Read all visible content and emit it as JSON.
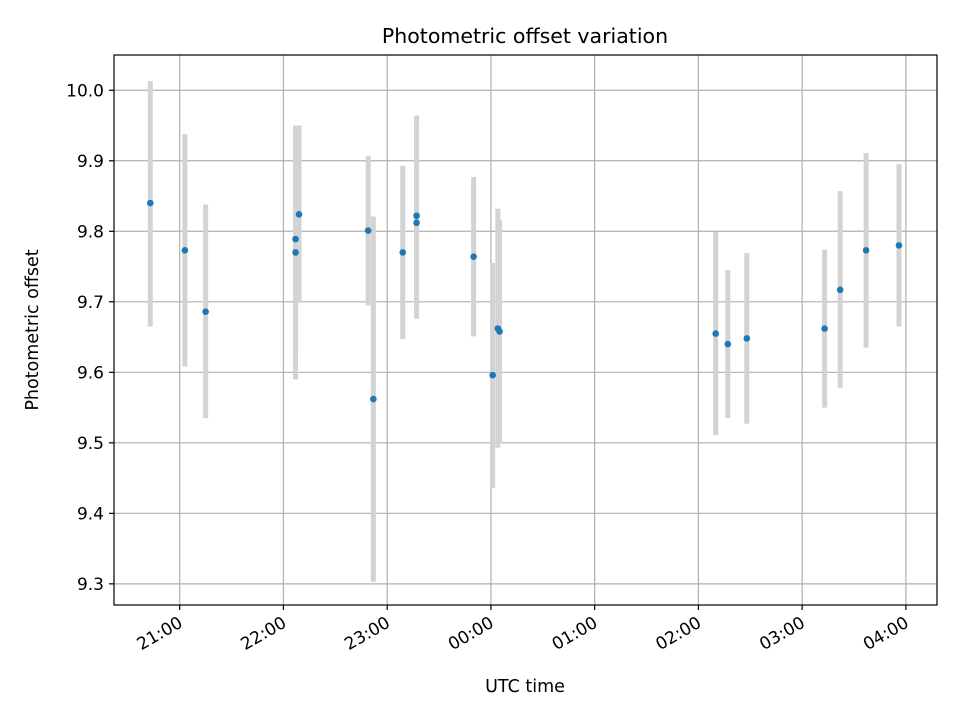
{
  "chart_data": {
    "type": "scatter",
    "title": "Photometric offset variation",
    "xlabel": "UTC time",
    "ylabel": "Photometric offset",
    "xlim": [
      "2023-01-01T20:22",
      "2023-01-02T04:18"
    ],
    "ylim": [
      9.27,
      10.05
    ],
    "grid": true,
    "x_ticks": [
      {
        "t": "2023-01-01T21:00",
        "label": "21:00"
      },
      {
        "t": "2023-01-01T22:00",
        "label": "22:00"
      },
      {
        "t": "2023-01-01T23:00",
        "label": "23:00"
      },
      {
        "t": "2023-01-02T00:00",
        "label": "00:00"
      },
      {
        "t": "2023-01-02T01:00",
        "label": "01:00"
      },
      {
        "t": "2023-01-02T02:00",
        "label": "02:00"
      },
      {
        "t": "2023-01-02T03:00",
        "label": "03:00"
      },
      {
        "t": "2023-01-02T04:00",
        "label": "04:00"
      }
    ],
    "y_ticks": [
      {
        "v": 9.3,
        "label": "9.3"
      },
      {
        "v": 9.4,
        "label": "9.4"
      },
      {
        "v": 9.5,
        "label": "9.5"
      },
      {
        "v": 9.6,
        "label": "9.6"
      },
      {
        "v": 9.7,
        "label": "9.7"
      },
      {
        "v": 9.8,
        "label": "9.8"
      },
      {
        "v": 9.9,
        "label": "9.9"
      },
      {
        "v": 10.0,
        "label": "10.0"
      }
    ],
    "series": [
      {
        "marker_color": "#1f77b4",
        "errorbar_color": "#d3d3d3",
        "points": [
          {
            "t": "2023-01-01T20:43",
            "y": 9.84,
            "err_low": 9.665,
            "err_high": 10.013
          },
          {
            "t": "2023-01-01T21:03",
            "y": 9.773,
            "err_low": 9.608,
            "err_high": 9.938
          },
          {
            "t": "2023-01-01T21:15",
            "y": 9.686,
            "err_low": 9.535,
            "err_high": 9.838
          },
          {
            "t": "2023-01-01T22:07",
            "y": 9.789,
            "err_low": 9.628,
            "err_high": 9.95
          },
          {
            "t": "2023-01-01T22:07",
            "y": 9.77,
            "err_low": 9.59,
            "err_high": 9.95
          },
          {
            "t": "2023-01-01T22:09",
            "y": 9.824,
            "err_low": 9.7,
            "err_high": 9.95
          },
          {
            "t": "2023-01-01T22:49",
            "y": 9.801,
            "err_low": 9.695,
            "err_high": 9.907
          },
          {
            "t": "2023-01-01T22:52",
            "y": 9.562,
            "err_low": 9.303,
            "err_high": 9.821
          },
          {
            "t": "2023-01-01T23:09",
            "y": 9.77,
            "err_low": 9.647,
            "err_high": 9.893
          },
          {
            "t": "2023-01-01T23:17",
            "y": 9.812,
            "err_low": 9.676,
            "err_high": 9.948
          },
          {
            "t": "2023-01-01T23:17",
            "y": 9.822,
            "err_low": 9.68,
            "err_high": 9.964
          },
          {
            "t": "2023-01-01T23:50",
            "y": 9.764,
            "err_low": 9.651,
            "err_high": 9.877
          },
          {
            "t": "2023-01-02T00:01",
            "y": 9.596,
            "err_low": 9.436,
            "err_high": 9.755
          },
          {
            "t": "2023-01-02T00:04",
            "y": 9.662,
            "err_low": 9.493,
            "err_high": 9.832
          },
          {
            "t": "2023-01-02T00:05",
            "y": 9.658,
            "err_low": 9.5,
            "err_high": 9.816
          },
          {
            "t": "2023-01-02T02:10",
            "y": 9.655,
            "err_low": 9.511,
            "err_high": 9.799
          },
          {
            "t": "2023-01-02T02:17",
            "y": 9.64,
            "err_low": 9.535,
            "err_high": 9.745
          },
          {
            "t": "2023-01-02T02:28",
            "y": 9.648,
            "err_low": 9.527,
            "err_high": 9.769
          },
          {
            "t": "2023-01-02T03:13",
            "y": 9.662,
            "err_low": 9.55,
            "err_high": 9.774
          },
          {
            "t": "2023-01-02T03:22",
            "y": 9.717,
            "err_low": 9.578,
            "err_high": 9.857
          },
          {
            "t": "2023-01-02T03:37",
            "y": 9.773,
            "err_low": 9.635,
            "err_high": 9.911
          },
          {
            "t": "2023-01-02T03:56",
            "y": 9.78,
            "err_low": 9.665,
            "err_high": 9.895
          }
        ]
      }
    ]
  }
}
